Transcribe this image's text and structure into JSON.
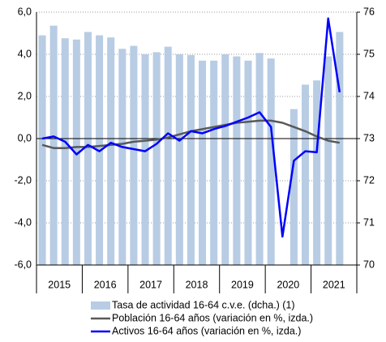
{
  "chart_data": {
    "type": "bar_line",
    "categories": [
      "2015",
      null,
      null,
      null,
      "2016",
      null,
      null,
      null,
      "2017",
      null,
      null,
      null,
      "2018",
      null,
      null,
      null,
      "2019",
      null,
      null,
      null,
      "2020",
      null,
      null,
      null,
      "2021",
      null,
      null,
      null
    ],
    "series": [
      {
        "name": "Tasa de actividad 16-64 c.v.e. (dcha.) (1)",
        "color": "#b8cce4",
        "kind": "bar",
        "axis": "y2",
        "values": [
          75.45,
          75.68,
          75.38,
          75.35,
          75.53,
          75.45,
          75.4,
          75.13,
          75.2,
          75.0,
          75.05,
          75.18,
          75.0,
          74.98,
          74.85,
          74.85,
          75.0,
          74.95,
          74.85,
          75.03,
          74.9,
          null,
          73.7,
          74.28,
          74.38,
          74.95,
          75.53,
          null
        ]
      },
      {
        "name": "Población 16-64 años (variación en %, izda.)",
        "color": "#595959",
        "kind": "line",
        "values": [
          -0.3,
          -0.45,
          -0.45,
          -0.4,
          -0.4,
          -0.35,
          -0.3,
          -0.25,
          -0.15,
          -0.1,
          -0.05,
          0.05,
          0.2,
          0.35,
          0.45,
          0.55,
          0.65,
          0.75,
          0.8,
          0.85,
          0.85,
          0.75,
          0.55,
          0.35,
          0.1,
          -0.1,
          -0.2,
          null
        ]
      },
      {
        "name": "Activos 16-64 años (variación en %, izda.)",
        "color": "#0000ff",
        "kind": "line",
        "values": [
          0.0,
          0.1,
          -0.15,
          -0.75,
          -0.3,
          -0.6,
          -0.2,
          -0.4,
          -0.5,
          -0.6,
          -0.25,
          0.25,
          -0.1,
          0.35,
          0.25,
          0.45,
          0.6,
          0.8,
          1.0,
          1.25,
          0.55,
          -4.65,
          -1.05,
          -0.6,
          -0.65,
          5.7,
          2.2,
          null
        ]
      }
    ],
    "ylim": [
      -6,
      6
    ],
    "yticks": [
      {
        "value": -6,
        "label": "-6,0"
      },
      {
        "value": -4,
        "label": "-4,0"
      },
      {
        "value": -2,
        "label": "-2,0"
      },
      {
        "value": 0,
        "label": "0,0"
      },
      {
        "value": 2,
        "label": "2,0"
      },
      {
        "value": 4,
        "label": "4,0"
      },
      {
        "value": 6,
        "label": "6,0"
      }
    ],
    "y2lim": [
      70,
      76
    ],
    "y2ticks": [
      70,
      71,
      72,
      73,
      74,
      75,
      76
    ],
    "grid": true
  }
}
